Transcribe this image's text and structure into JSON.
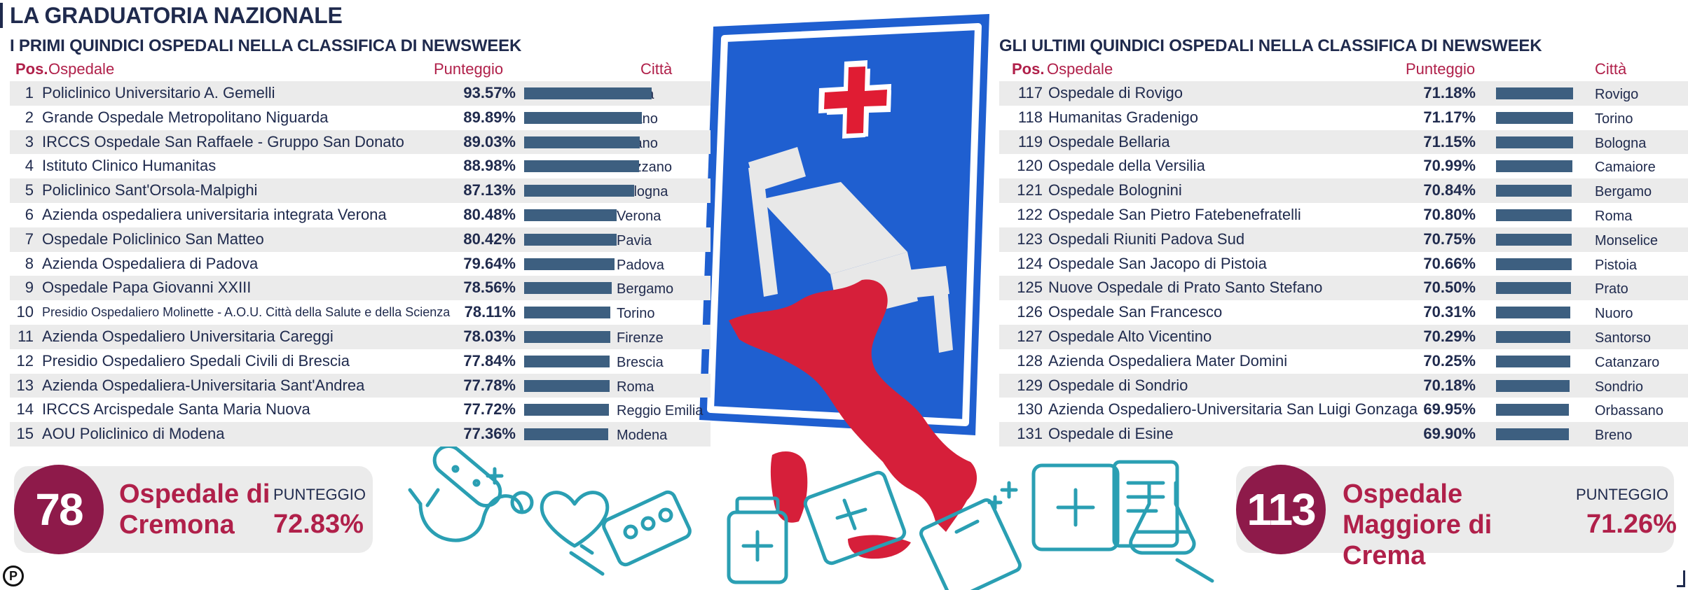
{
  "title": "LA GRADUATORIA NAZIONALE",
  "left_table": {
    "subtitle": "I PRIMI QUINDICI OSPEDALI NELLA CLASSIFICA DI NEWSWEEK",
    "headers": {
      "pos": "Pos.",
      "name": "Ospedale",
      "score": "Punteggio",
      "city": "Città"
    },
    "rows": [
      {
        "rank": "1",
        "name": "Policlinico Universitario A. Gemelli",
        "score": "93.57%",
        "city": "Roma",
        "value": 93.57
      },
      {
        "rank": "2",
        "name": "Grande Ospedale Metropolitano Niguarda",
        "score": "89.89%",
        "city": "Milano",
        "value": 89.89
      },
      {
        "rank": "3",
        "name": "IRCCS Ospedale San Raffaele - Gruppo San Donato",
        "score": "89.03%",
        "city": "Milano",
        "value": 89.03
      },
      {
        "rank": "4",
        "name": "Istituto Clinico Humanitas",
        "score": "88.98%",
        "city": "Rozzano",
        "value": 88.98
      },
      {
        "rank": "5",
        "name": "Policlinico Sant'Orsola-Malpighi",
        "score": "87.13%",
        "city": "Bologna",
        "value": 87.13
      },
      {
        "rank": "6",
        "name": "Azienda ospedaliera universitaria integrata Verona",
        "score": "80.48%",
        "city": "Verona",
        "value": 80.48
      },
      {
        "rank": "7",
        "name": "Ospedale Policlinico San Matteo",
        "score": "80.42%",
        "city": "Pavia",
        "value": 80.42
      },
      {
        "rank": "8",
        "name": "Azienda Ospedaliera di Padova",
        "score": "79.64%",
        "city": "Padova",
        "value": 79.64
      },
      {
        "rank": "9",
        "name": "Ospedale Papa Giovanni XXIII",
        "score": "78.56%",
        "city": "Bergamo",
        "value": 78.56
      },
      {
        "rank": "10",
        "name": "Presidio Ospedaliero Molinette - A.O.U. Città della Salute e della Scienza",
        "score": "78.11%",
        "city": "Torino",
        "value": 78.11
      },
      {
        "rank": "11",
        "name": "Azienda Ospedaliero Universitaria Careggi",
        "score": "78.03%",
        "city": "Firenze",
        "value": 78.03
      },
      {
        "rank": "12",
        "name": "Presidio Ospedaliero Spedali Civili di Brescia",
        "score": "77.84%",
        "city": "Brescia",
        "value": 77.84
      },
      {
        "rank": "13",
        "name": "Azienda Ospedaliera-Universitaria Sant'Andrea",
        "score": "77.78%",
        "city": "Roma",
        "value": 77.78
      },
      {
        "rank": "14",
        "name": "IRCCS Arcispedale Santa Maria Nuova",
        "score": "77.72%",
        "city": "Reggio Emilia",
        "value": 77.72
      },
      {
        "rank": "15",
        "name": "AOU Policlinico di Modena",
        "score": "77.36%",
        "city": "Modena",
        "value": 77.36
      }
    ]
  },
  "right_table": {
    "subtitle": "GLI ULTIMI QUINDICI OSPEDALI NELLA CLASSIFICA DI NEWSWEEK",
    "headers": {
      "pos": "Pos.",
      "name": "Ospedale",
      "score": "Punteggio",
      "city": "Città"
    },
    "rows": [
      {
        "rank": "117",
        "name": "Ospedale di Rovigo",
        "score": "71.18%",
        "city": "Rovigo",
        "value": 71.18
      },
      {
        "rank": "118",
        "name": "Humanitas Gradenigo",
        "score": "71.17%",
        "city": "Torino",
        "value": 71.17
      },
      {
        "rank": "119",
        "name": "Ospedale Bellaria",
        "score": "71.15%",
        "city": "Bologna",
        "value": 71.15
      },
      {
        "rank": "120",
        "name": "Ospedale della Versilia",
        "score": "70.99%",
        "city": "Camaiore",
        "value": 70.99
      },
      {
        "rank": "121",
        "name": "Ospedale Bolognini",
        "score": "70.84%",
        "city": "Bergamo",
        "value": 70.84
      },
      {
        "rank": "122",
        "name": "Ospedale San Pietro Fatebenefratelli",
        "score": "70.80%",
        "city": "Roma",
        "value": 70.8
      },
      {
        "rank": "123",
        "name": "Ospedali Riuniti Padova Sud",
        "score": "70.75%",
        "city": "Monselice",
        "value": 70.75
      },
      {
        "rank": "124",
        "name": "Ospedale San Jacopo di Pistoia",
        "score": "70.66%",
        "city": "Pistoia",
        "value": 70.66
      },
      {
        "rank": "125",
        "name": "Nuove Ospedale di Prato Santo Stefano",
        "score": "70.50%",
        "city": "Prato",
        "value": 70.5
      },
      {
        "rank": "126",
        "name": "Ospedale San Francesco",
        "score": "70.31%",
        "city": "Nuoro",
        "value": 70.31
      },
      {
        "rank": "127",
        "name": "Ospedale Alto Vicentino",
        "score": "70.29%",
        "city": "Santorso",
        "value": 70.29
      },
      {
        "rank": "128",
        "name": "Azienda Ospedaliera Mater Domini",
        "score": "70.25%",
        "city": "Catanzaro",
        "value": 70.25
      },
      {
        "rank": "129",
        "name": "Ospedale di Sondrio",
        "score": "70.18%",
        "city": "Sondrio",
        "value": 70.18
      },
      {
        "rank": "130",
        "name": "Azienda Ospedaliero-Universitaria San Luigi Gonzaga",
        "score": "69.95%",
        "city": "Orbassano",
        "value": 69.95
      },
      {
        "rank": "131",
        "name": "Ospedale di Esine",
        "score": "69.90%",
        "city": "Breno",
        "value": 69.9
      }
    ]
  },
  "highlight_left": {
    "position": "78",
    "hospital": "Ospedale di Cremona",
    "score_label": "PUNTEGGIO",
    "score": "72.83%"
  },
  "highlight_right": {
    "position": "113",
    "hospital": "Ospedale Maggiore di Crema",
    "score_label": "PUNTEGGIO",
    "score": "71.26%"
  },
  "logo": "P",
  "colors": {
    "navy": "#1f2a4d",
    "crimson": "#b0204a",
    "badge": "#8e1a4a",
    "bar": "#3d5f80",
    "row_shade": "#ebebeb",
    "sign_blue": "#1f5fd0",
    "italy_red": "#d61f3a",
    "icon_teal": "#2a9fb3"
  },
  "icons": [
    "hospital-sign-icon",
    "italy-map-icon",
    "stethoscope-icon",
    "bandage-icon",
    "heart-icon",
    "pill-blister-icon",
    "medicine-bottle-icon",
    "first-aid-kit-icon",
    "clipboard-icon",
    "flask-icon",
    "syringe-icon"
  ],
  "chart_data": [
    {
      "type": "bar",
      "title": "I PRIMI QUINDICI OSPEDALI NELLA CLASSIFICA DI NEWSWEEK",
      "categories": [
        "Policlinico Universitario A. Gemelli",
        "Grande Ospedale Metropolitano Niguarda",
        "IRCCS Ospedale San Raffaele - Gruppo San Donato",
        "Istituto Clinico Humanitas",
        "Policlinico Sant'Orsola-Malpighi",
        "Azienda ospedaliera universitaria integrata Verona",
        "Ospedale Policlinico San Matteo",
        "Azienda Ospedaliera di Padova",
        "Ospedale Papa Giovanni XXIII",
        "Presidio Ospedaliero Molinette - A.O.U. Città della Salute e della Scienza",
        "Azienda Ospedaliero Universitaria Careggi",
        "Presidio Ospedaliero Spedali Civili di Brescia",
        "Azienda Ospedaliera-Universitaria Sant'Andrea",
        "IRCCS Arcispedale Santa Maria Nuova",
        "AOU Policlinico di Modena"
      ],
      "values": [
        93.57,
        89.89,
        89.03,
        88.98,
        87.13,
        80.48,
        80.42,
        79.64,
        78.56,
        78.11,
        78.03,
        77.84,
        77.78,
        77.72,
        77.36
      ],
      "ylabel": "Punteggio"
    },
    {
      "type": "bar",
      "title": "GLI ULTIMI QUINDICI OSPEDALI NELLA CLASSIFICA DI NEWSWEEK",
      "categories": [
        "Ospedale di Rovigo",
        "Humanitas Gradenigo",
        "Ospedale Bellaria",
        "Ospedale della Versilia",
        "Ospedale Bolognini",
        "Ospedale San Pietro Fatebenefratelli",
        "Ospedali Riuniti Padova Sud",
        "Ospedale San Jacopo di Pistoia",
        "Nuove Ospedale di Prato Santo Stefano",
        "Ospedale San Francesco",
        "Ospedale Alto Vicentino",
        "Azienda Ospedaliera Mater Domini",
        "Ospedale di Sondrio",
        "Azienda Ospedaliero-Universitaria San Luigi Gonzaga",
        "Ospedale di Esine"
      ],
      "values": [
        71.18,
        71.17,
        71.15,
        70.99,
        70.84,
        70.8,
        70.75,
        70.66,
        70.5,
        70.31,
        70.29,
        70.25,
        70.18,
        69.95,
        69.9
      ],
      "ylabel": "Punteggio"
    }
  ]
}
